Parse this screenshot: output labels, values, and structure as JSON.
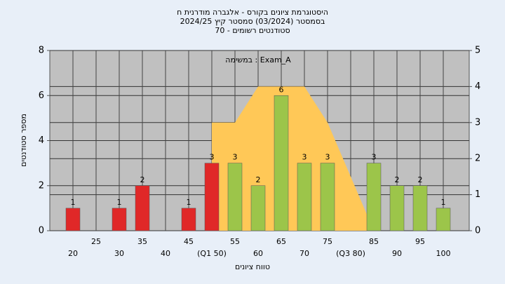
{
  "chart_data": {
    "type": "bar",
    "title": [
      "היסטוגרמת ציונים בקורס - אלגברה מודרנית ח",
      "בסמסטר  (03/2024)  סמסטר קיץ 2024/25",
      "סטודנטים רשומים - 70"
    ],
    "annotation": "במשימה : Exam_A",
    "x_label": "טווח ציונים",
    "y_label": "מספר סטודנטים",
    "categories": [
      "20",
      "25",
      "30",
      "35",
      "40",
      "45",
      "(Q1 50)",
      "55",
      "60",
      "65",
      "70",
      "75",
      "(Q3 80)",
      "85",
      "90",
      "95",
      "100"
    ],
    "series": [
      {
        "type": "bar",
        "values": [
          1,
          0,
          1,
          2,
          0,
          1,
          3,
          3,
          2,
          6,
          3,
          3,
          0,
          3,
          2,
          2,
          1
        ],
        "colors": [
          "#e02828",
          "#e02828",
          "#e02828",
          "#e02828",
          "#e02828",
          "#e02828",
          "#e02828",
          "#9cc54a",
          "#9cc54a",
          "#9cc54a",
          "#9cc54a",
          "#9cc54a",
          "#9cc54a",
          "#9cc54a",
          "#9cc54a",
          "#9cc54a",
          "#9cc54a"
        ]
      },
      {
        "type": "area",
        "axis": "y2",
        "color": "#ffc857",
        "values": [
          null,
          null,
          null,
          null,
          null,
          null,
          3,
          3,
          4,
          4,
          4,
          3,
          1.5,
          0,
          null,
          null,
          null
        ]
      }
    ],
    "ylim": [
      0,
      8
    ],
    "yticks": [
      0,
      2,
      4,
      6,
      8
    ],
    "y2lim": [
      0,
      5
    ],
    "y2ticks": [
      0,
      1,
      2,
      3,
      4,
      5
    ],
    "grid": true
  }
}
